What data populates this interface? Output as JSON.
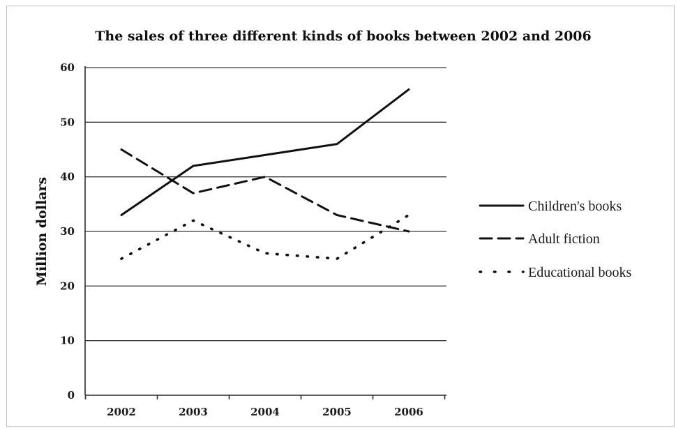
{
  "chart_data": {
    "type": "line",
    "title": "The sales of three different kinds of books between 2002 and 2006",
    "xlabel": "",
    "ylabel": "Million dollars",
    "categories": [
      "2002",
      "2003",
      "2004",
      "2005",
      "2006"
    ],
    "ylim": [
      0,
      60
    ],
    "yticks": [
      "0",
      "10",
      "20",
      "30",
      "40",
      "50",
      "60"
    ],
    "grid": "horizontal",
    "legend_position": "right",
    "series": [
      {
        "name": "Children's books",
        "values": [
          33,
          42,
          44,
          46,
          56
        ],
        "style": "solid",
        "color": "#111111"
      },
      {
        "name": "Adult fiction",
        "values": [
          45,
          37,
          40,
          33,
          30
        ],
        "style": "dashed",
        "color": "#111111"
      },
      {
        "name": "Educational books",
        "values": [
          25,
          32,
          26,
          25,
          33
        ],
        "style": "dotted",
        "color": "#111111"
      }
    ]
  }
}
